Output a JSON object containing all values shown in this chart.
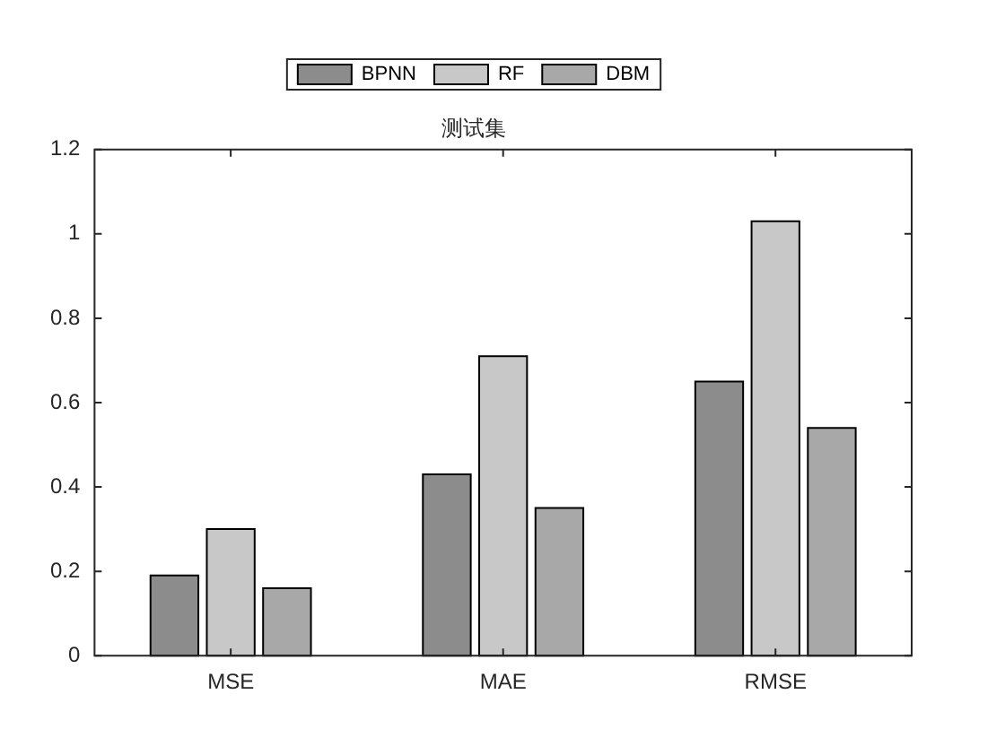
{
  "chart_data": {
    "type": "bar",
    "title": "测试集",
    "categories": [
      "MSE",
      "MAE",
      "RMSE"
    ],
    "series": [
      {
        "name": "BPNN",
        "color": "#8c8c8c",
        "values": [
          0.19,
          0.43,
          0.65
        ]
      },
      {
        "name": "RF",
        "color": "#c8c8c8",
        "values": [
          0.3,
          0.71,
          1.03
        ]
      },
      {
        "name": "DBM",
        "color": "#a8a8a8",
        "values": [
          0.16,
          0.35,
          0.54
        ]
      }
    ],
    "ylim": [
      0,
      1.2
    ],
    "yticks": [
      0,
      0.2,
      0.4,
      0.6,
      0.8,
      1,
      1.2
    ],
    "grid": false,
    "legend": "top"
  }
}
